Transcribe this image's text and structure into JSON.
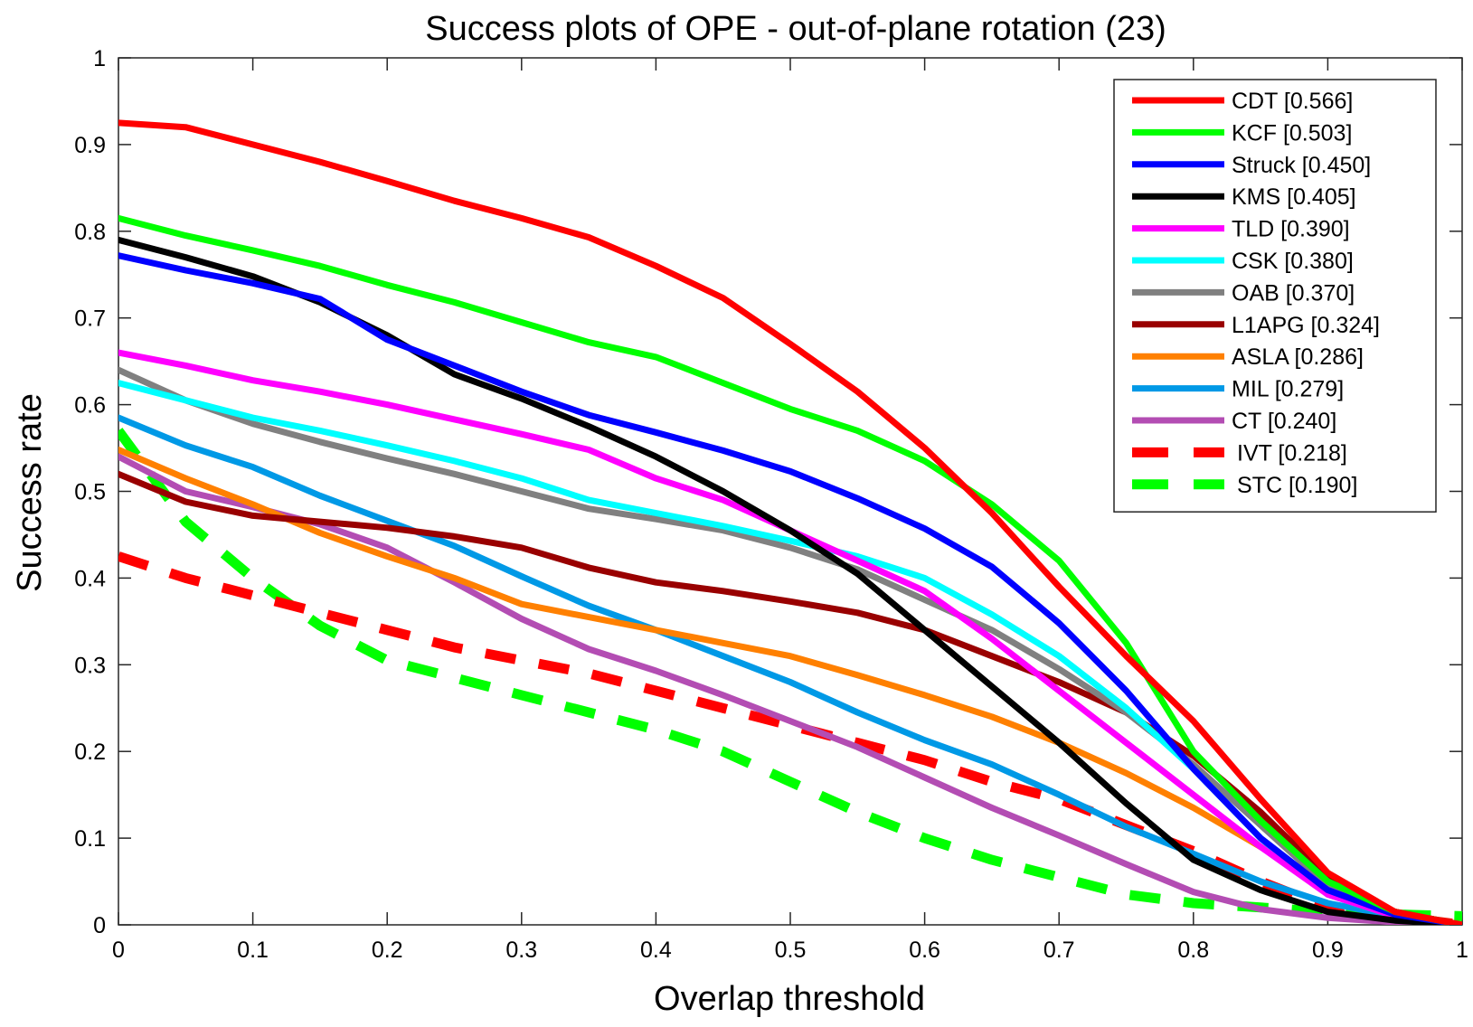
{
  "chart_data": {
    "type": "line",
    "title": "Success plots of OPE - out-of-plane rotation (23)",
    "xlabel": "Overlap threshold",
    "ylabel": "Success rate",
    "xlim": [
      0,
      1
    ],
    "ylim": [
      0,
      1
    ],
    "grid": false,
    "legend_position": "top-right",
    "x_ticks": [
      "0",
      "0.1",
      "0.2",
      "0.3",
      "0.4",
      "0.5",
      "0.6",
      "0.7",
      "0.8",
      "0.9",
      "1"
    ],
    "y_ticks": [
      "0",
      "0.1",
      "0.2",
      "0.3",
      "0.4",
      "0.5",
      "0.6",
      "0.7",
      "0.8",
      "0.9",
      "1"
    ],
    "x": [
      0,
      0.05,
      0.1,
      0.15,
      0.2,
      0.25,
      0.3,
      0.35,
      0.4,
      0.45,
      0.5,
      0.55,
      0.6,
      0.65,
      0.7,
      0.75,
      0.8,
      0.85,
      0.9,
      0.95,
      1
    ],
    "series": [
      {
        "name": "CDT",
        "legend": "CDT [0.566]",
        "color": "#ff0000",
        "dashed": false,
        "values": [
          0.925,
          0.92,
          0.9,
          0.88,
          0.858,
          0.835,
          0.815,
          0.793,
          0.76,
          0.723,
          0.67,
          0.615,
          0.55,
          0.475,
          0.39,
          0.31,
          0.235,
          0.145,
          0.06,
          0.015,
          0.0
        ]
      },
      {
        "name": "KCF",
        "legend": "KCF [0.503]",
        "color": "#00ff00",
        "dashed": false,
        "values": [
          0.815,
          0.795,
          0.778,
          0.76,
          0.738,
          0.718,
          0.695,
          0.672,
          0.655,
          0.625,
          0.595,
          0.57,
          0.535,
          0.485,
          0.42,
          0.325,
          0.2,
          0.12,
          0.05,
          0.015,
          0.0
        ]
      },
      {
        "name": "Struck",
        "legend": "Struck [0.450]",
        "color": "#0000ff",
        "dashed": false,
        "values": [
          0.772,
          0.755,
          0.74,
          0.722,
          0.675,
          0.645,
          0.615,
          0.588,
          0.568,
          0.547,
          0.523,
          0.492,
          0.457,
          0.413,
          0.348,
          0.27,
          0.18,
          0.1,
          0.04,
          0.012,
          0.0
        ]
      },
      {
        "name": "KMS",
        "legend": "KMS [0.405]",
        "color": "#000000",
        "dashed": false,
        "values": [
          0.79,
          0.77,
          0.748,
          0.718,
          0.68,
          0.635,
          0.607,
          0.575,
          0.54,
          0.5,
          0.455,
          0.405,
          0.34,
          0.275,
          0.21,
          0.14,
          0.075,
          0.04,
          0.015,
          0.005,
          0.0
        ]
      },
      {
        "name": "TLD",
        "legend": "TLD [0.390]",
        "color": "#ff00ff",
        "dashed": false,
        "values": [
          0.66,
          0.645,
          0.628,
          0.615,
          0.6,
          0.583,
          0.566,
          0.548,
          0.515,
          0.49,
          0.455,
          0.42,
          0.385,
          0.33,
          0.27,
          0.21,
          0.15,
          0.09,
          0.035,
          0.01,
          0.0
        ]
      },
      {
        "name": "CSK",
        "legend": "CSK [0.380]",
        "color": "#00ffff",
        "dashed": false,
        "values": [
          0.625,
          0.605,
          0.585,
          0.57,
          0.553,
          0.535,
          0.515,
          0.49,
          0.475,
          0.46,
          0.443,
          0.425,
          0.4,
          0.358,
          0.31,
          0.25,
          0.18,
          0.1,
          0.035,
          0.01,
          0.0
        ]
      },
      {
        "name": "OAB",
        "legend": "OAB [0.370]",
        "color": "#808080",
        "dashed": false,
        "values": [
          0.64,
          0.605,
          0.578,
          0.557,
          0.538,
          0.52,
          0.5,
          0.48,
          0.468,
          0.455,
          0.435,
          0.41,
          0.375,
          0.34,
          0.295,
          0.245,
          0.185,
          0.115,
          0.045,
          0.012,
          0.0
        ]
      },
      {
        "name": "L1APG",
        "legend": "L1APG [0.324]",
        "color": "#990000",
        "dashed": false,
        "values": [
          0.52,
          0.488,
          0.472,
          0.465,
          0.458,
          0.448,
          0.435,
          0.412,
          0.395,
          0.385,
          0.373,
          0.36,
          0.34,
          0.31,
          0.28,
          0.245,
          0.195,
          0.13,
          0.055,
          0.015,
          0.0
        ]
      },
      {
        "name": "ASLA",
        "legend": "ASLA [0.286]",
        "color": "#ff8000",
        "dashed": false,
        "values": [
          0.548,
          0.515,
          0.485,
          0.452,
          0.425,
          0.4,
          0.37,
          0.355,
          0.34,
          0.325,
          0.31,
          0.288,
          0.265,
          0.24,
          0.21,
          0.175,
          0.135,
          0.09,
          0.045,
          0.015,
          0.0
        ]
      },
      {
        "name": "MIL",
        "legend": "MIL [0.279]",
        "color": "#0099e6",
        "dashed": false,
        "values": [
          0.585,
          0.553,
          0.528,
          0.495,
          0.466,
          0.437,
          0.402,
          0.368,
          0.34,
          0.31,
          0.28,
          0.245,
          0.213,
          0.185,
          0.15,
          0.113,
          0.082,
          0.05,
          0.025,
          0.01,
          0.0
        ]
      },
      {
        "name": "CT",
        "legend": "CT [0.240]",
        "color": "#b34db3",
        "dashed": false,
        "values": [
          0.54,
          0.5,
          0.482,
          0.462,
          0.435,
          0.395,
          0.353,
          0.318,
          0.293,
          0.265,
          0.235,
          0.205,
          0.17,
          0.135,
          0.103,
          0.07,
          0.038,
          0.018,
          0.008,
          0.003,
          0.0
        ]
      },
      {
        "name": "IVT",
        "legend": "IVT [0.218]",
        "color": "#ff0000",
        "dashed": true,
        "values": [
          0.425,
          0.4,
          0.38,
          0.36,
          0.34,
          0.32,
          0.305,
          0.29,
          0.27,
          0.25,
          0.23,
          0.21,
          0.19,
          0.165,
          0.145,
          0.115,
          0.085,
          0.05,
          0.02,
          0.01,
          0.0
        ]
      },
      {
        "name": "STC",
        "legend": "STC [0.190]",
        "color": "#00ff00",
        "dashed": true,
        "values": [
          0.57,
          0.465,
          0.4,
          0.345,
          0.305,
          0.285,
          0.265,
          0.245,
          0.225,
          0.2,
          0.165,
          0.13,
          0.1,
          0.075,
          0.055,
          0.035,
          0.025,
          0.02,
          0.015,
          0.012,
          0.01
        ]
      }
    ]
  }
}
